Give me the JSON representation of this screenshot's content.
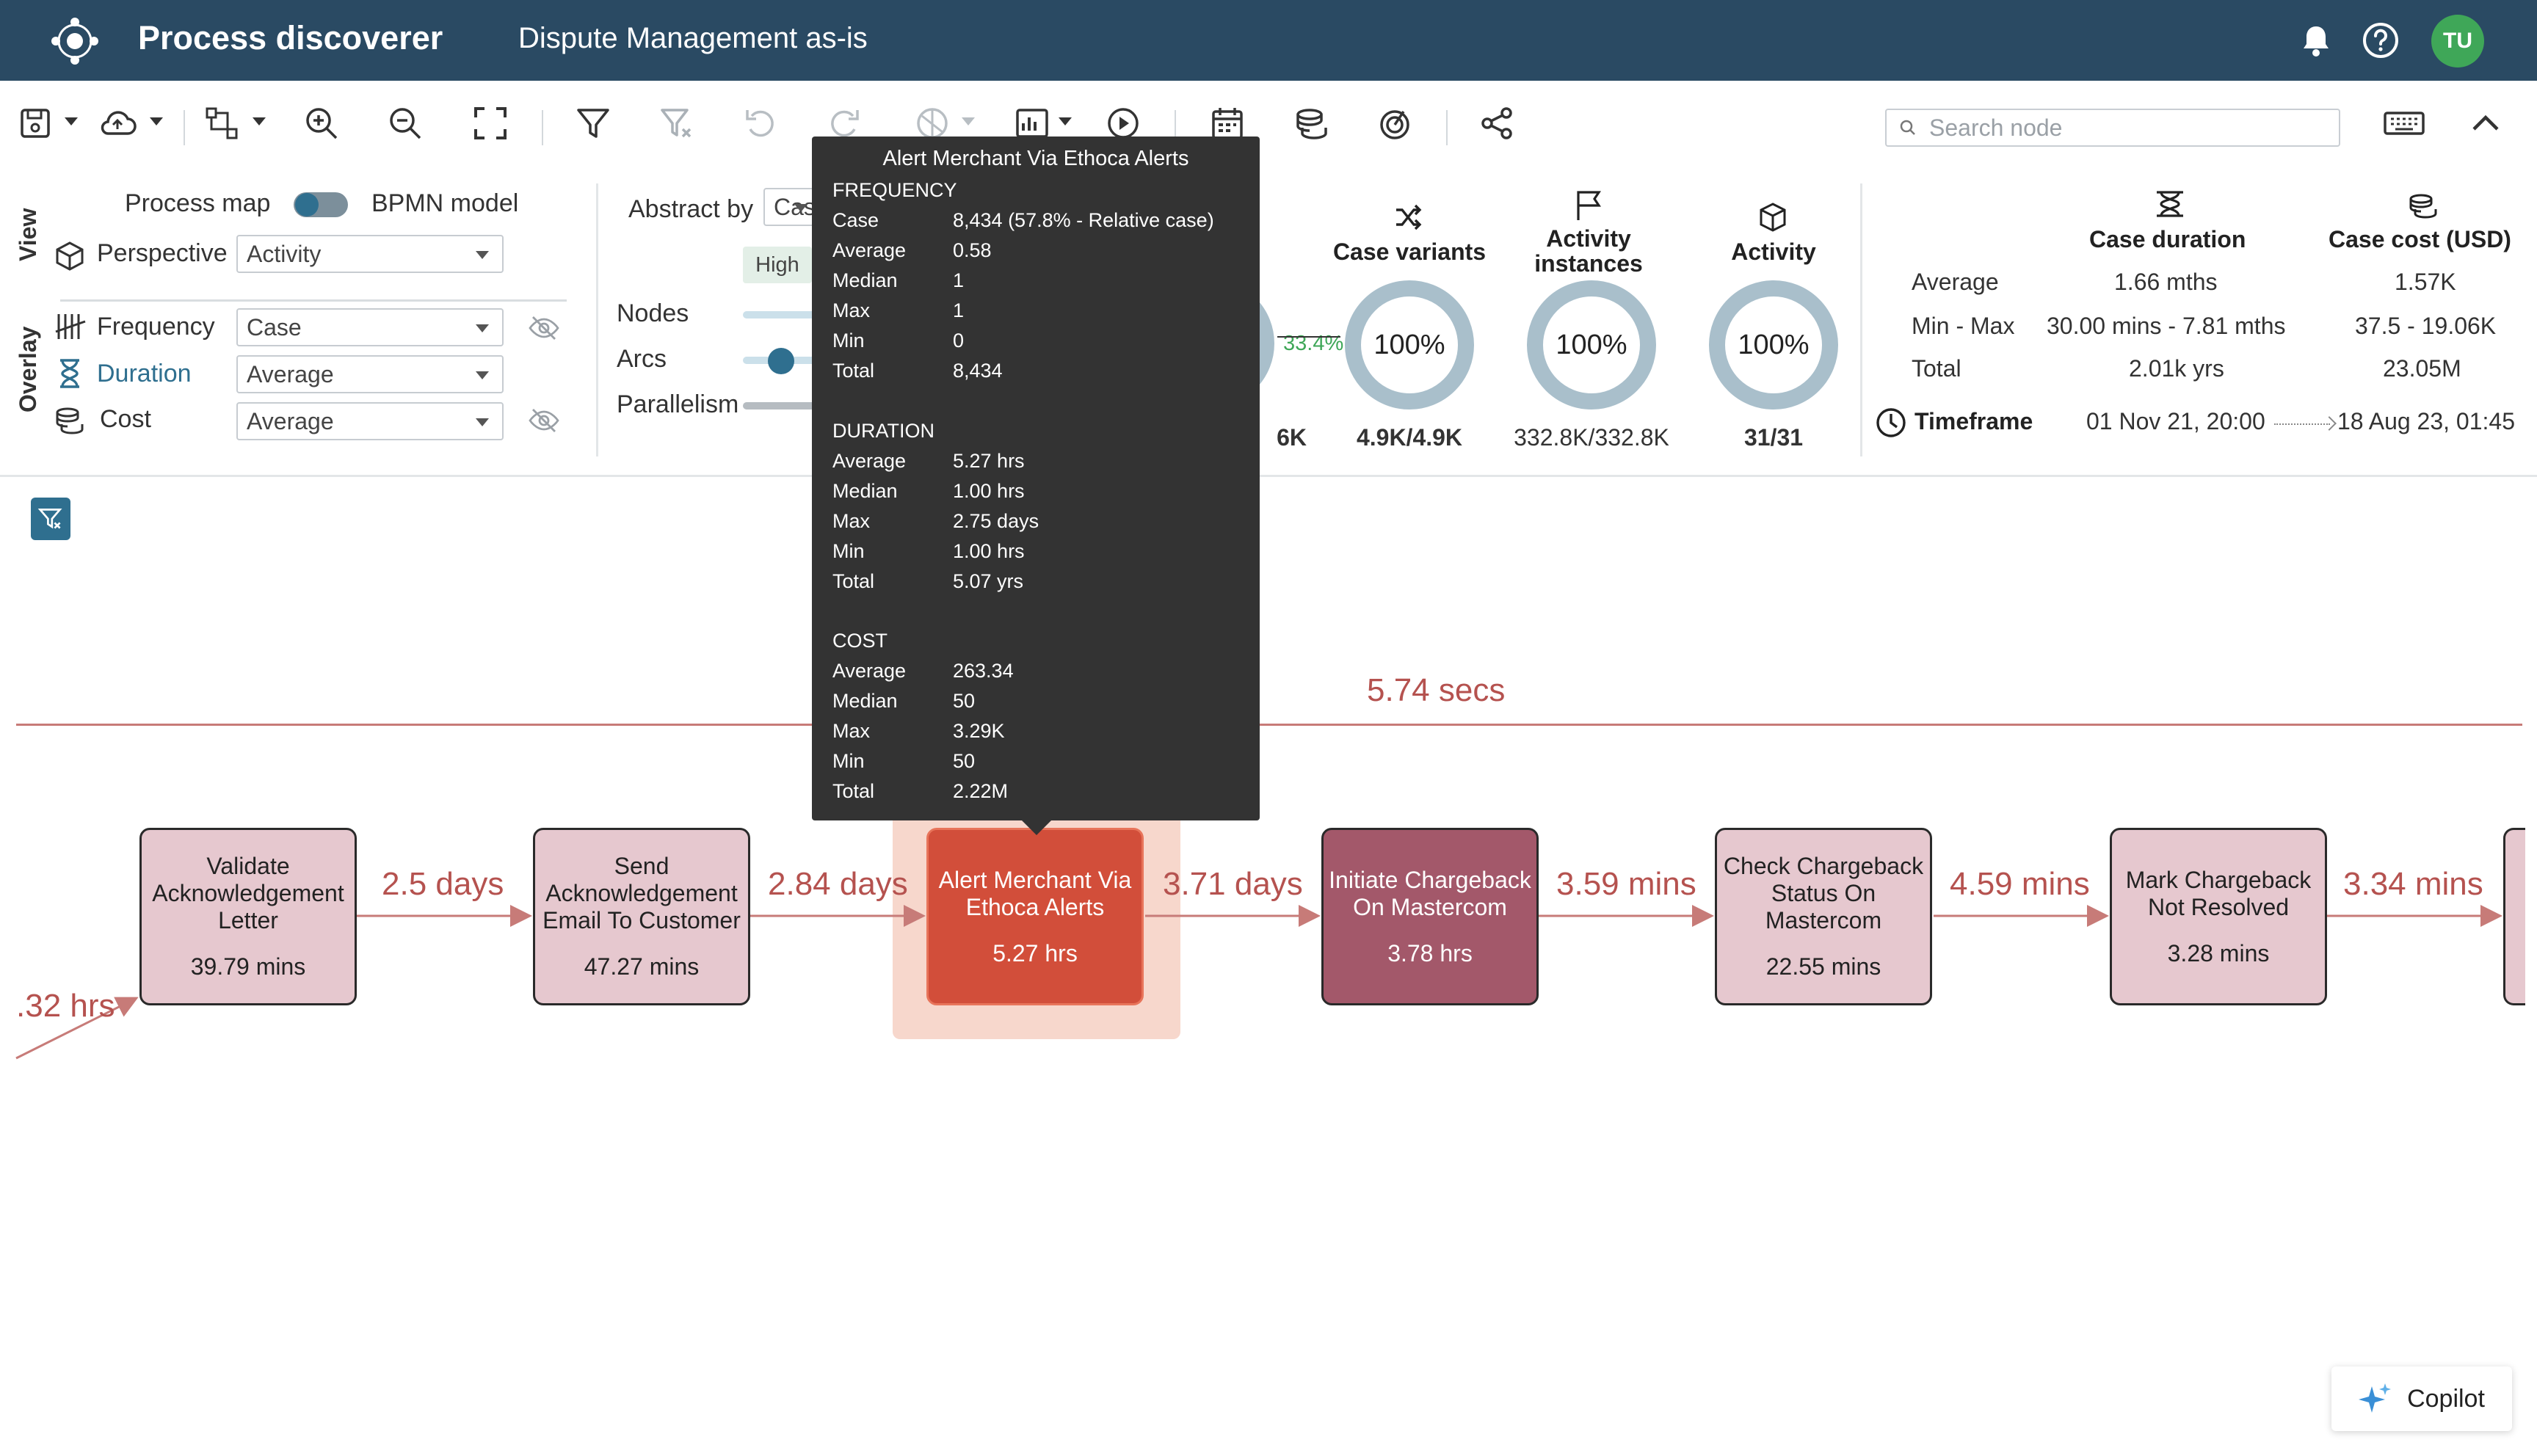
{
  "header": {
    "app_title": "Process discoverer",
    "process_name": "Dispute Management as-is",
    "avatar_initials": "TU"
  },
  "toolbar": {
    "search_placeholder": "Search node"
  },
  "view": {
    "section_label": "View",
    "process_map_label": "Process map",
    "bpmn_label": "BPMN model",
    "perspective_label": "Perspective",
    "perspective_value": "Activity"
  },
  "overlay": {
    "section_label": "Overlay",
    "frequency_label": "Frequency",
    "frequency_value": "Case",
    "duration_label": "Duration",
    "duration_value": "Average",
    "cost_label": "Cost",
    "cost_value": "Average"
  },
  "abstraction": {
    "abstract_by_label": "Abstract by",
    "abstract_by_value": "Cas",
    "high_label": "High",
    "nodes_label": "Nodes",
    "arcs_label": "Arcs",
    "parallelism_label": "Parallelism"
  },
  "metrics": {
    "cases_partial_pct": "33.4",
    "cases_partial_value": "6K",
    "items": [
      {
        "label": "Case variants",
        "percent": "100%",
        "value": "4.9K/4.9K"
      },
      {
        "label": "Activity instances",
        "percent": "100%",
        "value": "332.8K/332.8K"
      },
      {
        "label": "Activity",
        "percent": "100%",
        "value": "31/31"
      }
    ]
  },
  "stats": {
    "duration_header": "Case duration",
    "cost_header": "Case cost (USD)",
    "rows": [
      {
        "label": "Average",
        "duration": "1.66 mths",
        "cost": "1.57K"
      },
      {
        "label": "Min - Max",
        "duration": "30.00 mins - 7.81 mths",
        "cost": "37.5 - 19.06K"
      },
      {
        "label": "Total",
        "duration": "2.01k yrs",
        "cost": "23.05M"
      }
    ],
    "timeframe_label": "Timeframe",
    "timeframe_start": "01 Nov 21, 20:00",
    "timeframe_end": "18 Aug 23, 01:45"
  },
  "canvas": {
    "timeline_label": "5.74 secs",
    "incoming_edge_label": ".32 hrs",
    "nodes": [
      {
        "name": "Validate Acknowledgement Letter",
        "duration": "39.79 mins"
      },
      {
        "name": "Send Acknowledgement Email To Customer",
        "duration": "47.27 mins"
      },
      {
        "name": "Alert Merchant Via Ethoca Alerts",
        "duration": "5.27 hrs"
      },
      {
        "name": "Initiate Chargeback On Mastercom",
        "duration": "3.78 hrs"
      },
      {
        "name": "Check Chargeback Status On Mastercom",
        "duration": "22.55 mins"
      },
      {
        "name": "Mark Chargeback Not Resolved",
        "duration": "3.28 mins"
      }
    ],
    "edges": [
      "2.5 days",
      "2.84 days",
      "3.71 days",
      "3.59 mins",
      "4.59 mins",
      "3.34 mins"
    ]
  },
  "tooltip": {
    "title": "Alert Merchant Via Ethoca Alerts",
    "sections": [
      {
        "heading": "FREQUENCY",
        "rows": [
          {
            "k": "Case",
            "v": "8,434 (57.8% - Relative case)"
          },
          {
            "k": "Average",
            "v": "0.58"
          },
          {
            "k": "Median",
            "v": "1"
          },
          {
            "k": "Max",
            "v": "1"
          },
          {
            "k": "Min",
            "v": "0"
          },
          {
            "k": "Total",
            "v": "8,434"
          }
        ]
      },
      {
        "heading": "DURATION",
        "rows": [
          {
            "k": "Average",
            "v": "5.27 hrs"
          },
          {
            "k": "Median",
            "v": "1.00 hrs"
          },
          {
            "k": "Max",
            "v": "2.75 days"
          },
          {
            "k": "Min",
            "v": "1.00 hrs"
          },
          {
            "k": "Total",
            "v": "5.07 yrs"
          }
        ]
      },
      {
        "heading": "COST",
        "rows": [
          {
            "k": "Average",
            "v": "263.34"
          },
          {
            "k": "Median",
            "v": "50"
          },
          {
            "k": "Max",
            "v": "3.29K"
          },
          {
            "k": "Min",
            "v": "50"
          },
          {
            "k": "Total",
            "v": "2.22M"
          }
        ]
      }
    ]
  },
  "copilot": {
    "label": "Copilot"
  },
  "colors": {
    "header_bg": "#2a4a63",
    "accent": "#2f6f8f",
    "node_light": "#e6c8cf",
    "node_dark": "#a3586a",
    "node_selected": "#d24e3a",
    "edge": "#b5524f",
    "avatar_bg": "#3fa758"
  }
}
